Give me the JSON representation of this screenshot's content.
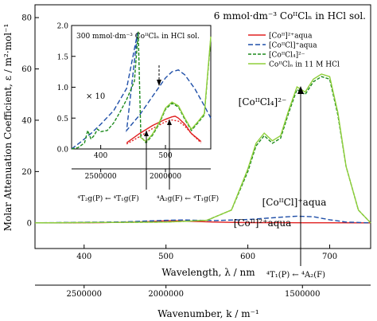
{
  "chart_data": [
    {
      "type": "line",
      "title": "6 mmol·dm⁻³ CoᴵᴵClₙ in HCl sol.",
      "xlabel": "Wavelength, λ / nm",
      "ylabel": "Molar Attenuation Coefficient, ε / m²·mol⁻¹",
      "x2label": "Wavenumber, k / m⁻¹",
      "xlim": [
        340,
        750
      ],
      "ylim": [
        -10,
        85
      ],
      "yticks": [
        "0",
        "20",
        "40",
        "60",
        "80"
      ],
      "xticks": [
        "400",
        "500",
        "600",
        "700"
      ],
      "x2ticks": [
        "2500000",
        "2000000",
        "1500000"
      ],
      "x2tick_values": [
        400,
        500,
        666.7
      ],
      "grid": false,
      "legend_position": "top-right",
      "series": [
        {
          "name": "[Coᴵᴵ]²⁺aqua",
          "color": "#e02020",
          "dash": "solid",
          "x": [
            340,
            420,
            460,
            480,
            500,
            510,
            520,
            540,
            560,
            600,
            640,
            700,
            750
          ],
          "y": [
            0,
            0.1,
            0.3,
            0.5,
            0.8,
            0.85,
            0.7,
            0.5,
            0.3,
            0.1,
            0.05,
            0.02,
            0
          ]
        },
        {
          "name": "[CoᴵᴵCl]⁺aqua",
          "color": "#1f4fa8",
          "dash": "6,3",
          "x": [
            340,
            450,
            500,
            520,
            560,
            600,
            640,
            660,
            680,
            700,
            720,
            750
          ],
          "y": [
            0,
            0.4,
            1.0,
            1.1,
            0.9,
            1.3,
            2.2,
            2.6,
            2.4,
            1.2,
            0.3,
            0
          ]
        },
        {
          "name": "[CoᴵᴵCl₄]²⁻",
          "color": "#1d8a1d",
          "dash": "4,2",
          "x": [
            340,
            500,
            550,
            580,
            600,
            610,
            620,
            630,
            640,
            650,
            660,
            670,
            680,
            690,
            700,
            710,
            720,
            735,
            750
          ],
          "y": [
            0,
            0.3,
            1,
            5,
            20,
            30,
            34,
            31,
            33,
            43,
            52,
            50,
            55,
            57,
            56,
            42,
            22,
            5,
            0
          ]
        },
        {
          "name": "CoᴵᴵClₙ in 11 M HCl",
          "color": "#8fcf3a",
          "dash": "solid",
          "x": [
            340,
            500,
            550,
            580,
            600,
            610,
            620,
            630,
            640,
            650,
            660,
            670,
            680,
            690,
            700,
            710,
            720,
            735,
            750
          ],
          "y": [
            0,
            0.3,
            1,
            5,
            21,
            31,
            35,
            32,
            34,
            44,
            53,
            51,
            56,
            58,
            57,
            43,
            22,
            5,
            0
          ]
        }
      ],
      "annotations": [
        {
          "text": "[CoᴵᴵCl₄]²⁻",
          "x": 655,
          "y": 62
        },
        {
          "text": "[CoᴵᴵCl]⁺aqua",
          "x": 645,
          "y": 5
        },
        {
          "text": "[Coᴵᴵ]²⁺aqua",
          "x": 655,
          "y": -7
        },
        {
          "text": "⁴T₁(P) ← ⁴A₂(F)",
          "x": 670,
          "y": -35
        }
      ]
    },
    {
      "type": "line",
      "title": "300 mmol·dm⁻³ CoᴵᴵClₙ in HCl sol.",
      "annotation_scale": "× 10",
      "xlim": [
        355,
        570
      ],
      "ylim": [
        0,
        2.0
      ],
      "yticks": [
        "0.0",
        "0.5",
        "1.0",
        "1.5",
        "2.0"
      ],
      "xticks": [
        "400",
        "500"
      ],
      "x2ticks": [
        "2500000",
        "2000000"
      ],
      "x2tick_values": [
        400,
        500
      ],
      "series": [
        {
          "name": "[Coᴵᴵ]²⁺aqua",
          "color": "#e02020",
          "dash": "solid",
          "x": [
            440,
            460,
            480,
            500,
            510,
            515,
            520,
            530,
            540,
            555
          ],
          "y": [
            0.1,
            0.25,
            0.38,
            0.48,
            0.52,
            0.53,
            0.5,
            0.4,
            0.25,
            0.12
          ]
        },
        {
          "name": "[Coᴵᴵ]²⁺aqua ×10",
          "color": "#e02020",
          "dash": "2,2",
          "x": [
            440,
            460,
            480,
            500,
            510,
            520,
            530,
            540,
            555
          ],
          "y": [
            0.08,
            0.2,
            0.33,
            0.44,
            0.47,
            0.45,
            0.37,
            0.25,
            0.1
          ]
        },
        {
          "name": "[CoᴵᴵCl]⁺aqua",
          "color": "#1f4fa8",
          "dash": "6,3",
          "x": [
            355,
            370,
            385,
            400,
            420,
            440,
            457,
            440,
            460,
            480,
            500,
            510,
            520,
            530,
            545,
            560,
            570
          ],
          "y": [
            0.0,
            0.12,
            0.25,
            0.4,
            0.62,
            0.98,
            1.88,
            0.3,
            0.55,
            0.85,
            1.15,
            1.25,
            1.28,
            1.2,
            0.98,
            0.7,
            0.5
          ]
        },
        {
          "name": "[CoᴵᴵCl₄]²⁻",
          "color": "#1d8a1d",
          "dash": "4,2",
          "x": [
            355,
            365,
            375,
            380,
            385,
            390,
            395,
            400,
            410,
            420,
            430,
            440,
            452,
            458,
            462,
            470,
            480,
            490,
            500,
            510,
            520,
            530,
            540,
            550,
            560,
            570
          ],
          "y": [
            0.0,
            0.02,
            0.1,
            0.3,
            0.16,
            0.22,
            0.32,
            0.28,
            0.3,
            0.42,
            0.6,
            0.8,
            1.1,
            1.9,
            0.2,
            0.1,
            0.22,
            0.4,
            0.64,
            0.74,
            0.68,
            0.48,
            0.3,
            0.42,
            0.55,
            1.8
          ]
        },
        {
          "name": "CoᴵᴵClₙ in 11 M HCl",
          "color": "#8fcf3a",
          "dash": "solid",
          "x": [
            460,
            470,
            480,
            490,
            500,
            510,
            520,
            530,
            540,
            550,
            560,
            570
          ],
          "y": [
            0.2,
            0.12,
            0.24,
            0.42,
            0.66,
            0.76,
            0.7,
            0.5,
            0.32,
            0.44,
            0.57,
            1.82
          ]
        }
      ],
      "annotations": [
        {
          "text": "⁴T₂g(P) ← ⁴T₁g(F)"
        },
        {
          "text": "⁴A₂g(F) ← ⁴T₁g(F)"
        }
      ]
    }
  ]
}
